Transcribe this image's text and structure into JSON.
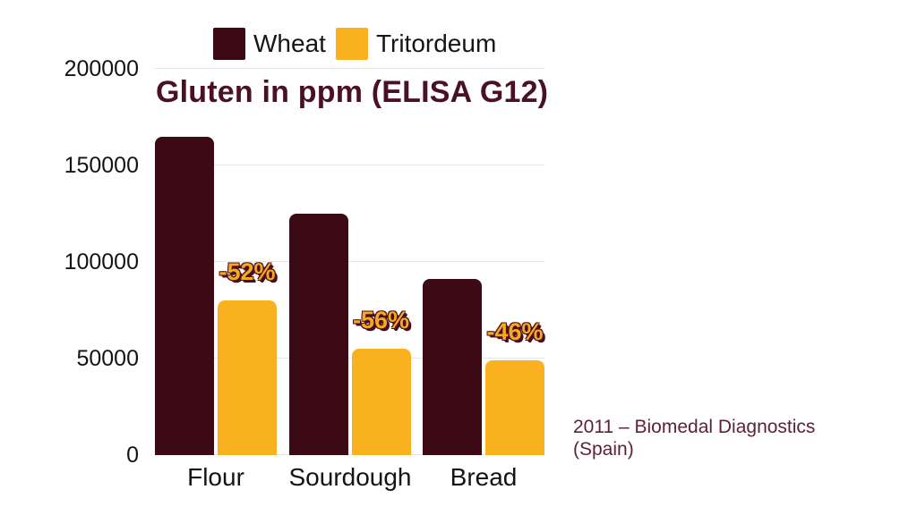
{
  "source": {
    "line1": "2011 – Biomedal Diagnostics",
    "line2": "(Spain)"
  },
  "colors": {
    "background": "#FFFFFF",
    "title": "#4A1124",
    "axis_text": "#141414",
    "legend_text": "#161616",
    "grid": "#E7E7E7",
    "source_text": "#5E2233",
    "percent_text": "#F6A91C",
    "percent_shadow": "#4A0F1E"
  },
  "chart_data": {
    "type": "bar",
    "title": "Gluten in ppm (ELISA G12)",
    "categories": [
      "Flour",
      "Sourdough",
      "Bread"
    ],
    "series": [
      {
        "name": "Wheat",
        "color": "#3B0A14",
        "values": [
          165000,
          125000,
          91000
        ]
      },
      {
        "name": "Tritordeum",
        "color": "#F9B120",
        "values": [
          80000,
          55000,
          49000
        ],
        "change_labels": [
          "-52%",
          "-56%",
          "-46%"
        ]
      }
    ],
    "xlabel": "",
    "ylabel": "",
    "ylim": [
      0,
      200000
    ],
    "yticks": [
      0,
      50000,
      100000,
      150000,
      200000
    ],
    "ytick_labels": [
      "0",
      "50000",
      "100000",
      "150000",
      "200000"
    ],
    "grid": true,
    "legend_position": "top",
    "annotation": "2011 – Biomedal Diagnostics (Spain)"
  }
}
